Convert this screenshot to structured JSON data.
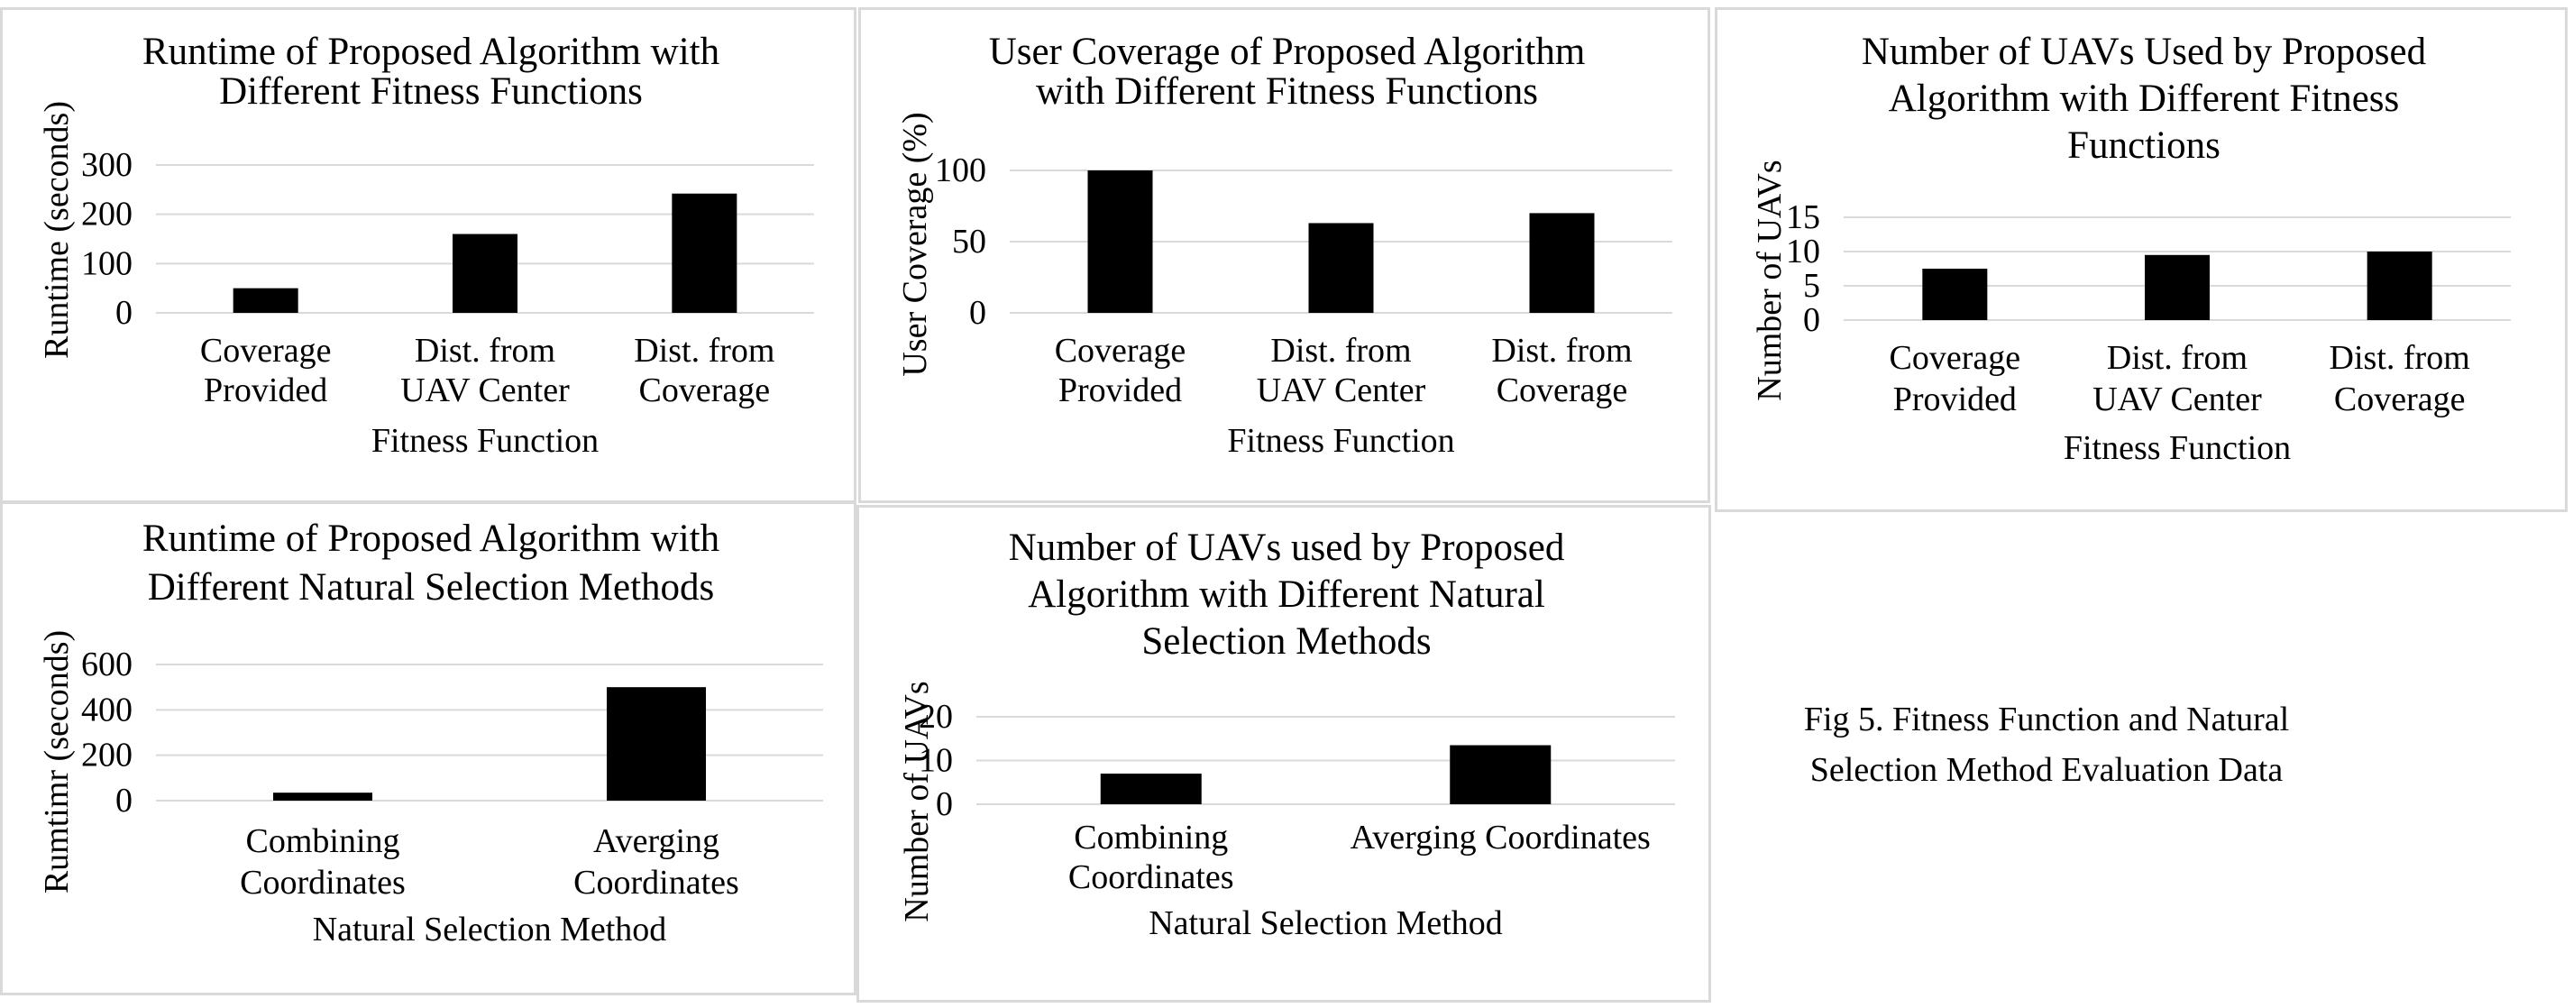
{
  "caption": {
    "line1": "Fig 5.  Fitness Function and Natural",
    "line2": "Selection Method Evaluation Data"
  },
  "chart_data": [
    {
      "type": "bar",
      "title": [
        "Runtime of Proposed Algorithm with",
        "Different Fitness Functions"
      ],
      "xlabel": "Fitness Function",
      "ylabel": "Runtime (seconds)",
      "categories": [
        [
          "Coverage",
          "Provided"
        ],
        [
          "Dist. from",
          "UAV Center"
        ],
        [
          "Dist. from",
          "Coverage"
        ]
      ],
      "values": [
        50,
        160,
        242
      ],
      "ylim": [
        0,
        300
      ],
      "yticks": [
        0,
        100,
        200,
        300
      ],
      "grid": true,
      "bar_color": "#000000"
    },
    {
      "type": "bar",
      "title": [
        "User Coverage of Proposed Algorithm",
        "with Different Fitness Functions"
      ],
      "xlabel": "Fitness Function",
      "ylabel": "User Coverage (%)",
      "categories": [
        [
          "Coverage",
          "Provided"
        ],
        [
          "Dist. from",
          "UAV Center"
        ],
        [
          "Dist. from",
          "Coverage"
        ]
      ],
      "values": [
        100,
        63,
        70
      ],
      "ylim": [
        0,
        100
      ],
      "yticks": [
        0,
        50,
        100
      ],
      "grid": true,
      "bar_color": "#000000"
    },
    {
      "type": "bar",
      "title": [
        "Number of UAVs  Used by Proposed",
        "Algorithm with Different Fitness",
        "Functions"
      ],
      "xlabel": "Fitness Function",
      "ylabel": "Number of UAVs",
      "categories": [
        [
          "Coverage",
          "Provided"
        ],
        [
          "Dist. from",
          "UAV Center"
        ],
        [
          "Dist. from",
          "Coverage"
        ]
      ],
      "values": [
        7.5,
        9.5,
        10
      ],
      "ylim": [
        0,
        15
      ],
      "yticks": [
        0,
        5,
        10,
        15
      ],
      "grid": true,
      "bar_color": "#000000"
    },
    {
      "type": "bar",
      "title": [
        "Runtime of Proposed Algorithm with",
        "Different Natural Selection Methods"
      ],
      "xlabel": "Natural Selection Method",
      "ylabel": "Rumtimr (seconds)",
      "categories": [
        [
          "Combining",
          "Coordinates"
        ],
        [
          "Averging",
          "Coordinates"
        ]
      ],
      "values": [
        35,
        500
      ],
      "ylim": [
        0,
        600
      ],
      "yticks": [
        0,
        200,
        400,
        600
      ],
      "grid": true,
      "bar_color": "#000000"
    },
    {
      "type": "bar",
      "title": [
        "Number of UAVs  used by Proposed",
        "Algorithm with Different Natural",
        "Selection Methods"
      ],
      "xlabel": "Natural Selection Method",
      "ylabel": "Number of UAVs",
      "categories": [
        [
          "Combining",
          "Coordinates"
        ],
        [
          "Averging Coordinates"
        ]
      ],
      "values": [
        7,
        13.5
      ],
      "ylim": [
        0,
        20
      ],
      "yticks": [
        0,
        10,
        20
      ],
      "grid": true,
      "bar_color": "#000000"
    }
  ]
}
